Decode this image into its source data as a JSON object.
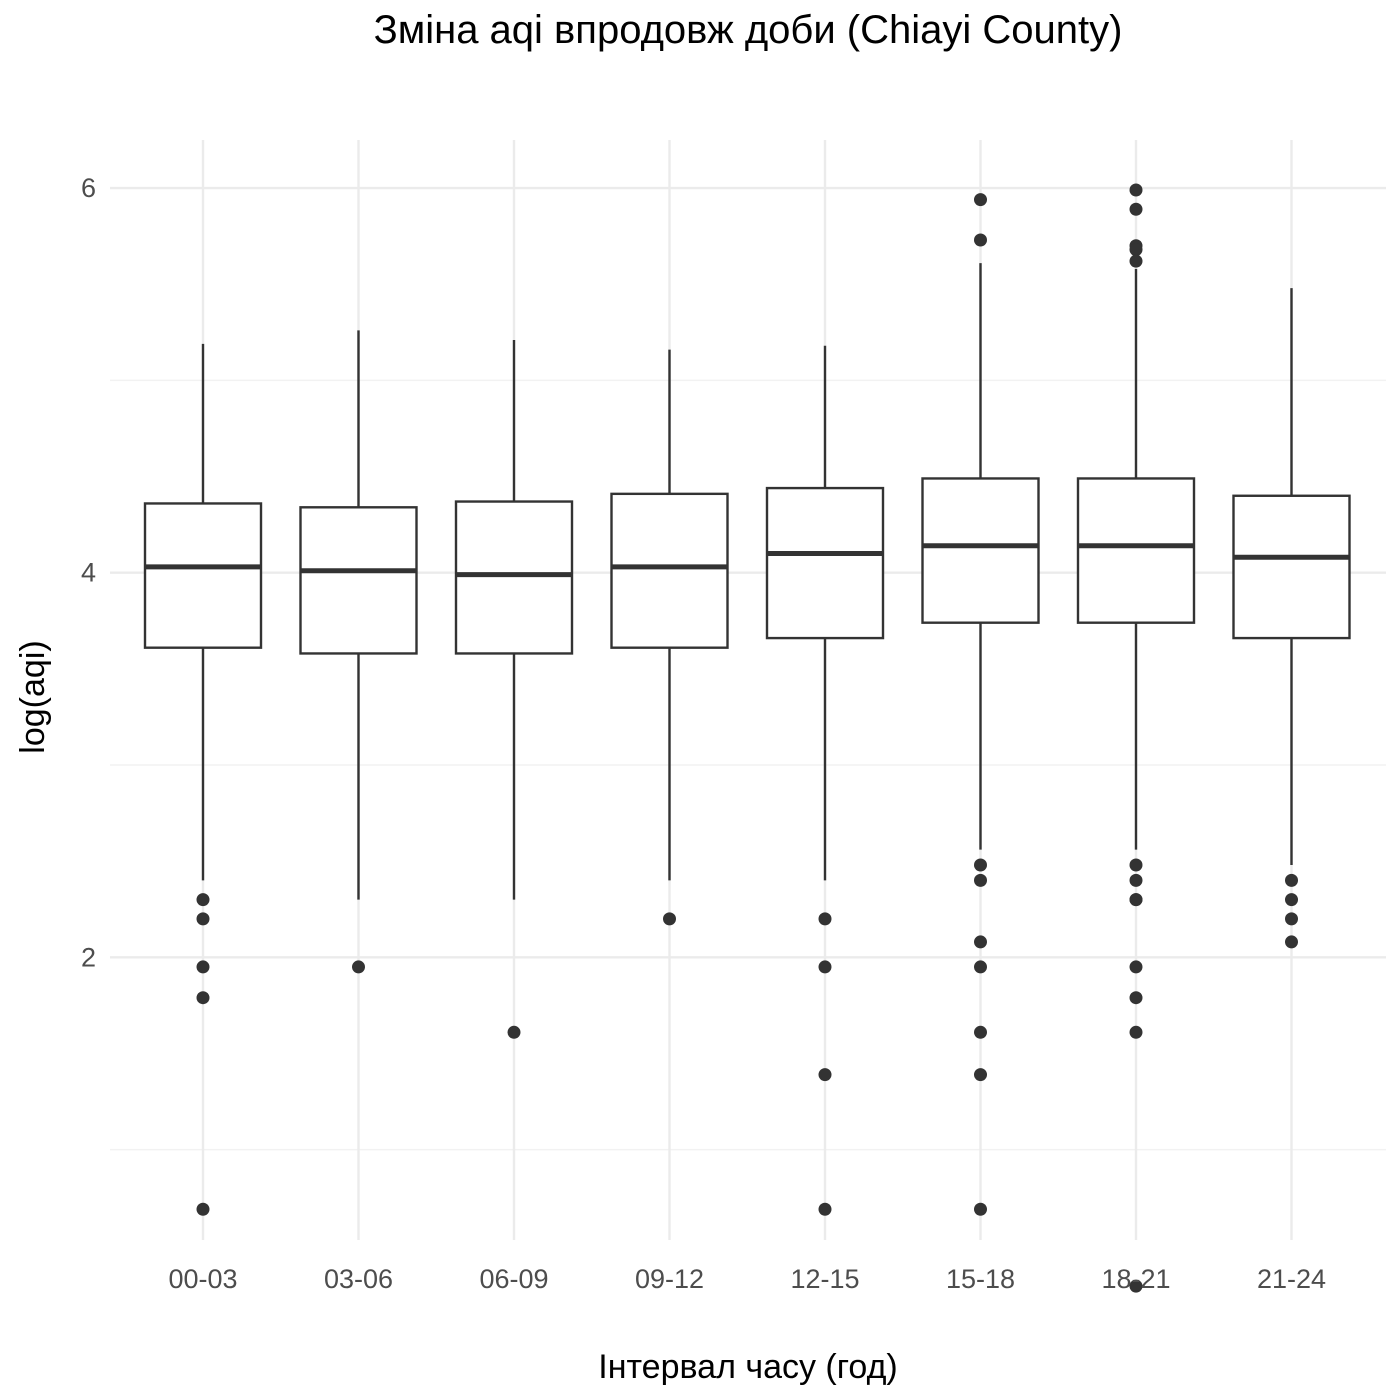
{
  "chart_data": {
    "type": "boxplot",
    "title": "Зміна aqi впродовж доби (Chiayi County)",
    "xlabel": "Інтервал часу (год)",
    "ylabel": "log(aqi)",
    "categories": [
      "00-03",
      "03-06",
      "06-09",
      "09-12",
      "12-15",
      "15-18",
      "18-21",
      "21-24"
    ],
    "yticks": [
      2,
      4,
      6
    ],
    "ylim": [
      0.53,
      6.25
    ],
    "grid": true,
    "boxes": [
      {
        "q1": 3.61,
        "median": 4.03,
        "q3": 4.36,
        "whisker_low": 2.4,
        "whisker_high": 5.19,
        "outliers": [
          2.3,
          2.2,
          1.95,
          1.79,
          0.69
        ]
      },
      {
        "q1": 3.58,
        "median": 4.01,
        "q3": 4.34,
        "whisker_low": 2.3,
        "whisker_high": 5.26,
        "outliers": [
          1.95
        ]
      },
      {
        "q1": 3.58,
        "median": 3.99,
        "q3": 4.37,
        "whisker_low": 2.3,
        "whisker_high": 5.21,
        "outliers": [
          1.61
        ]
      },
      {
        "q1": 3.61,
        "median": 4.03,
        "q3": 4.41,
        "whisker_low": 2.4,
        "whisker_high": 5.16,
        "outliers": [
          2.2
        ]
      },
      {
        "q1": 3.66,
        "median": 4.1,
        "q3": 4.44,
        "whisker_low": 2.4,
        "whisker_high": 5.18,
        "outliers": [
          2.2,
          1.95,
          1.39,
          0.69
        ]
      },
      {
        "q1": 3.74,
        "median": 4.14,
        "q3": 4.49,
        "whisker_low": 2.56,
        "whisker_high": 5.61,
        "outliers": [
          5.94,
          5.73,
          2.48,
          2.4,
          2.08,
          1.95,
          1.61,
          1.39,
          0.69
        ]
      },
      {
        "q1": 3.74,
        "median": 4.14,
        "q3": 4.49,
        "whisker_low": 2.56,
        "whisker_high": 5.58,
        "outliers": [
          5.99,
          5.89,
          5.7,
          5.68,
          5.62,
          2.48,
          2.4,
          2.3,
          2.3,
          1.95,
          1.79,
          1.61,
          0.29
        ]
      },
      {
        "q1": 3.66,
        "median": 4.08,
        "q3": 4.4,
        "whisker_low": 2.48,
        "whisker_high": 5.48,
        "outliers": [
          2.4,
          2.3,
          2.2,
          2.08
        ]
      }
    ]
  }
}
